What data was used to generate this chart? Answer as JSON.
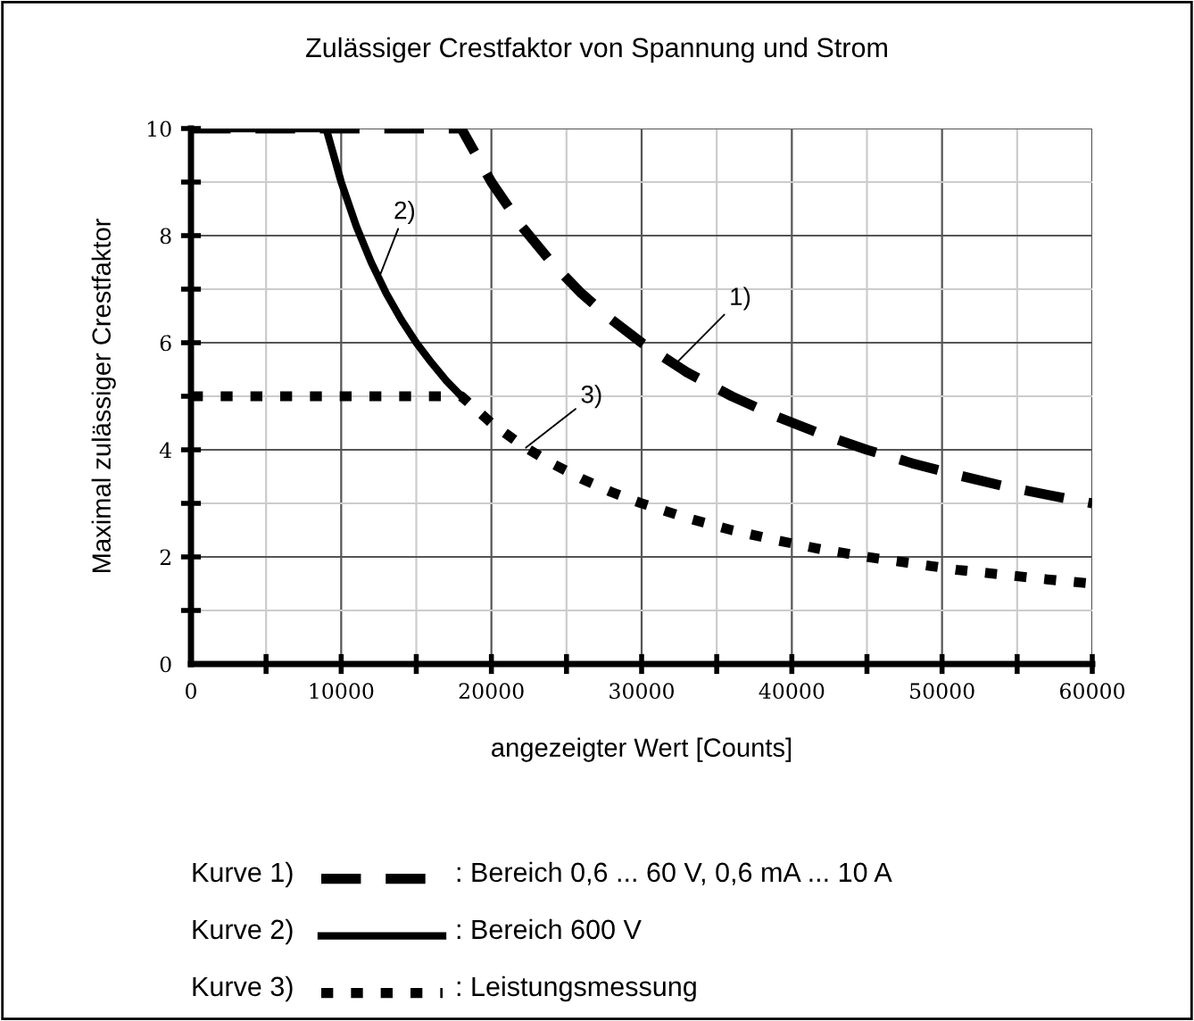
{
  "chart_data": {
    "type": "line",
    "title": "Zulässiger Crestfaktor von Spannung und Strom",
    "xlabel": "angezeigter Wert [Counts]",
    "ylabel": "Maximal zulässiger Crestfaktor",
    "xlim": [
      0,
      60000
    ],
    "ylim": [
      0,
      10
    ],
    "xticks": [
      0,
      {
        "value": 5000,
        "label": null
      },
      10000,
      {
        "value": 15000,
        "label": null
      },
      20000,
      {
        "value": 25000,
        "label": null
      },
      30000,
      {
        "value": 35000,
        "label": null
      },
      40000,
      {
        "value": 45000,
        "label": null
      },
      50000,
      {
        "value": 55000,
        "label": null
      },
      60000
    ],
    "yticks": [
      0,
      {
        "value": 1,
        "label": null
      },
      2,
      {
        "value": 3,
        "label": null
      },
      4,
      {
        "value": 5,
        "label": null
      },
      6,
      {
        "value": 7,
        "label": null
      },
      8,
      {
        "value": 9,
        "label": null
      },
      10
    ],
    "grid": true,
    "legend": "bottom",
    "series": [
      {
        "name": ": Bereich 0,6 ... 60 V, 0,6 mA ... 10 A",
        "color": "#000000",
        "line_style": "dashed",
        "x": [
          0,
          18000,
          20000,
          22000,
          24000,
          26000,
          28000,
          30000,
          33000,
          36000,
          39000,
          42000,
          45000,
          48000,
          51000,
          54000,
          57000,
          60000
        ],
        "values": [
          10,
          10,
          9,
          8.18,
          7.5,
          6.92,
          6.43,
          6,
          5.45,
          5,
          4.62,
          4.29,
          4,
          3.75,
          3.53,
          3.33,
          3.16,
          3
        ]
      },
      {
        "name": ": Bereich 600 V",
        "color": "#000000",
        "line_style": "solid",
        "x": [
          0,
          9000,
          10000,
          11000,
          12000,
          13000,
          14000,
          15000,
          16000,
          17000,
          18000
        ],
        "values": [
          10,
          10,
          9,
          8.18,
          7.5,
          6.92,
          6.43,
          6,
          5.63,
          5.29,
          5
        ]
      },
      {
        "name": ": Leistungsmessung",
        "color": "#000000",
        "line_style": "dotted",
        "x": [
          0,
          18000,
          20000,
          22000,
          24000,
          26000,
          28000,
          30000,
          33000,
          36000,
          39000,
          42000,
          45000,
          48000,
          51000,
          54000,
          57000,
          60000
        ],
        "values": [
          5,
          5,
          4.5,
          4.09,
          3.75,
          3.46,
          3.21,
          3,
          2.73,
          2.5,
          2.31,
          2.14,
          2,
          1.88,
          1.76,
          1.67,
          1.58,
          1.5
        ]
      }
    ],
    "annotations": [
      "Kurve 1)",
      "Kurve 2)",
      "Kurve 3)",
      {
        "text": "1)",
        "x": 32200,
        "y": 5.59
      },
      {
        "text": "2)",
        "x": 12500,
        "y": 7.2
      },
      {
        "text": "3)",
        "x": 22300,
        "y": 4.04
      }
    ]
  }
}
